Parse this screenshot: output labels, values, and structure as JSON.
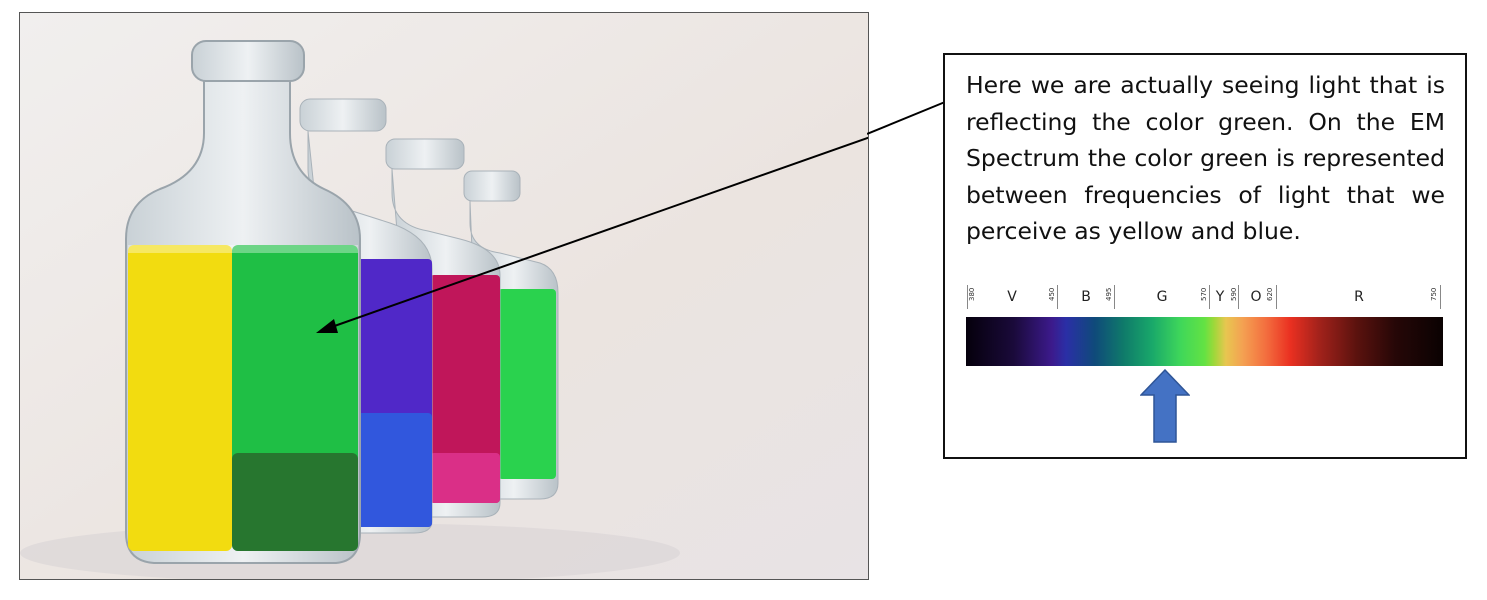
{
  "callout": {
    "text": "Here we are actually seeing light that is reflecting the color green. On the EM Spectrum the color green is represented between frequencies of light that we perceive as yellow and blue."
  },
  "spectrum": {
    "bands": [
      {
        "key": "violet",
        "letter": "V"
      },
      {
        "key": "blue",
        "letter": "B"
      },
      {
        "key": "green",
        "letter": "G"
      },
      {
        "key": "yellow",
        "letter": "Y"
      },
      {
        "key": "orange",
        "letter": "O"
      },
      {
        "key": "red",
        "letter": "R"
      }
    ],
    "boundaries_nm": [
      "380",
      "450",
      "495",
      "570",
      "590",
      "620",
      "750"
    ],
    "highlighted_band": "G"
  },
  "colors": {
    "pointer_arrow": "#4472c4",
    "liquid_yellow": "#f2dc10",
    "liquid_green": "#1fbf45",
    "liquid_blue": "#3e2fd0",
    "liquid_magenta": "#c0165a",
    "liquid_green_small": "#2ad24e"
  }
}
